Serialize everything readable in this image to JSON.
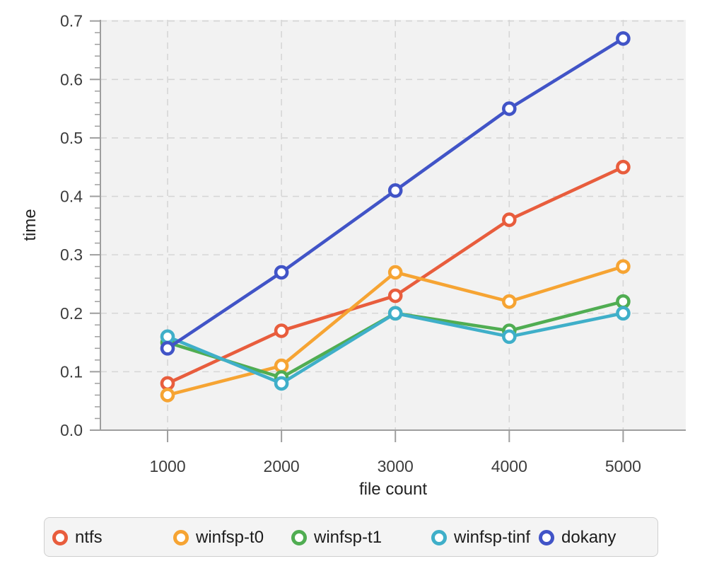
{
  "chart_data": {
    "type": "line",
    "title": "",
    "xlabel": "file count",
    "ylabel": "time",
    "x": [
      1000,
      2000,
      3000,
      4000,
      5000
    ],
    "x_tick_labels": [
      "1000",
      "2000",
      "3000",
      "4000",
      "5000"
    ],
    "y_ticks": [
      0.0,
      0.1,
      0.2,
      0.3,
      0.4,
      0.5,
      0.6,
      0.7
    ],
    "y_tick_labels": [
      "0.0",
      "0.1",
      "0.2",
      "0.3",
      "0.4",
      "0.5",
      "0.6",
      "0.7"
    ],
    "y_minor_tick_step": 0.02,
    "xlim": [
      410,
      5550
    ],
    "ylim": [
      0,
      0.702
    ],
    "grid": "dashed",
    "legend_position": "bottom",
    "series": [
      {
        "name": "ntfs",
        "color": "#e85d3d",
        "values": [
          0.08,
          0.17,
          0.23,
          0.36,
          0.45
        ]
      },
      {
        "name": "winfsp-t0",
        "color": "#f6a433",
        "values": [
          0.06,
          0.11,
          0.27,
          0.22,
          0.28
        ]
      },
      {
        "name": "winfsp-t1",
        "color": "#50ad52",
        "values": [
          0.15,
          0.09,
          0.2,
          0.17,
          0.22
        ]
      },
      {
        "name": "winfsp-tinf",
        "color": "#3fafc9",
        "values": [
          0.16,
          0.08,
          0.2,
          0.16,
          0.2
        ]
      },
      {
        "name": "dokany",
        "color": "#4154c7",
        "values": [
          0.14,
          0.27,
          0.41,
          0.55,
          0.67
        ]
      }
    ],
    "colors": {
      "plot_bg": "#f2f2f2",
      "grid": "#d6d6d6",
      "axis": "#9e9e9e",
      "tick_label": "#3d3d3d",
      "axis_label": "#222222",
      "marker_fill": "#ffffff",
      "legend_bg": "#f4f4f4",
      "legend_border": "#cfcfcf",
      "legend_text": "#1c1c1c"
    }
  }
}
